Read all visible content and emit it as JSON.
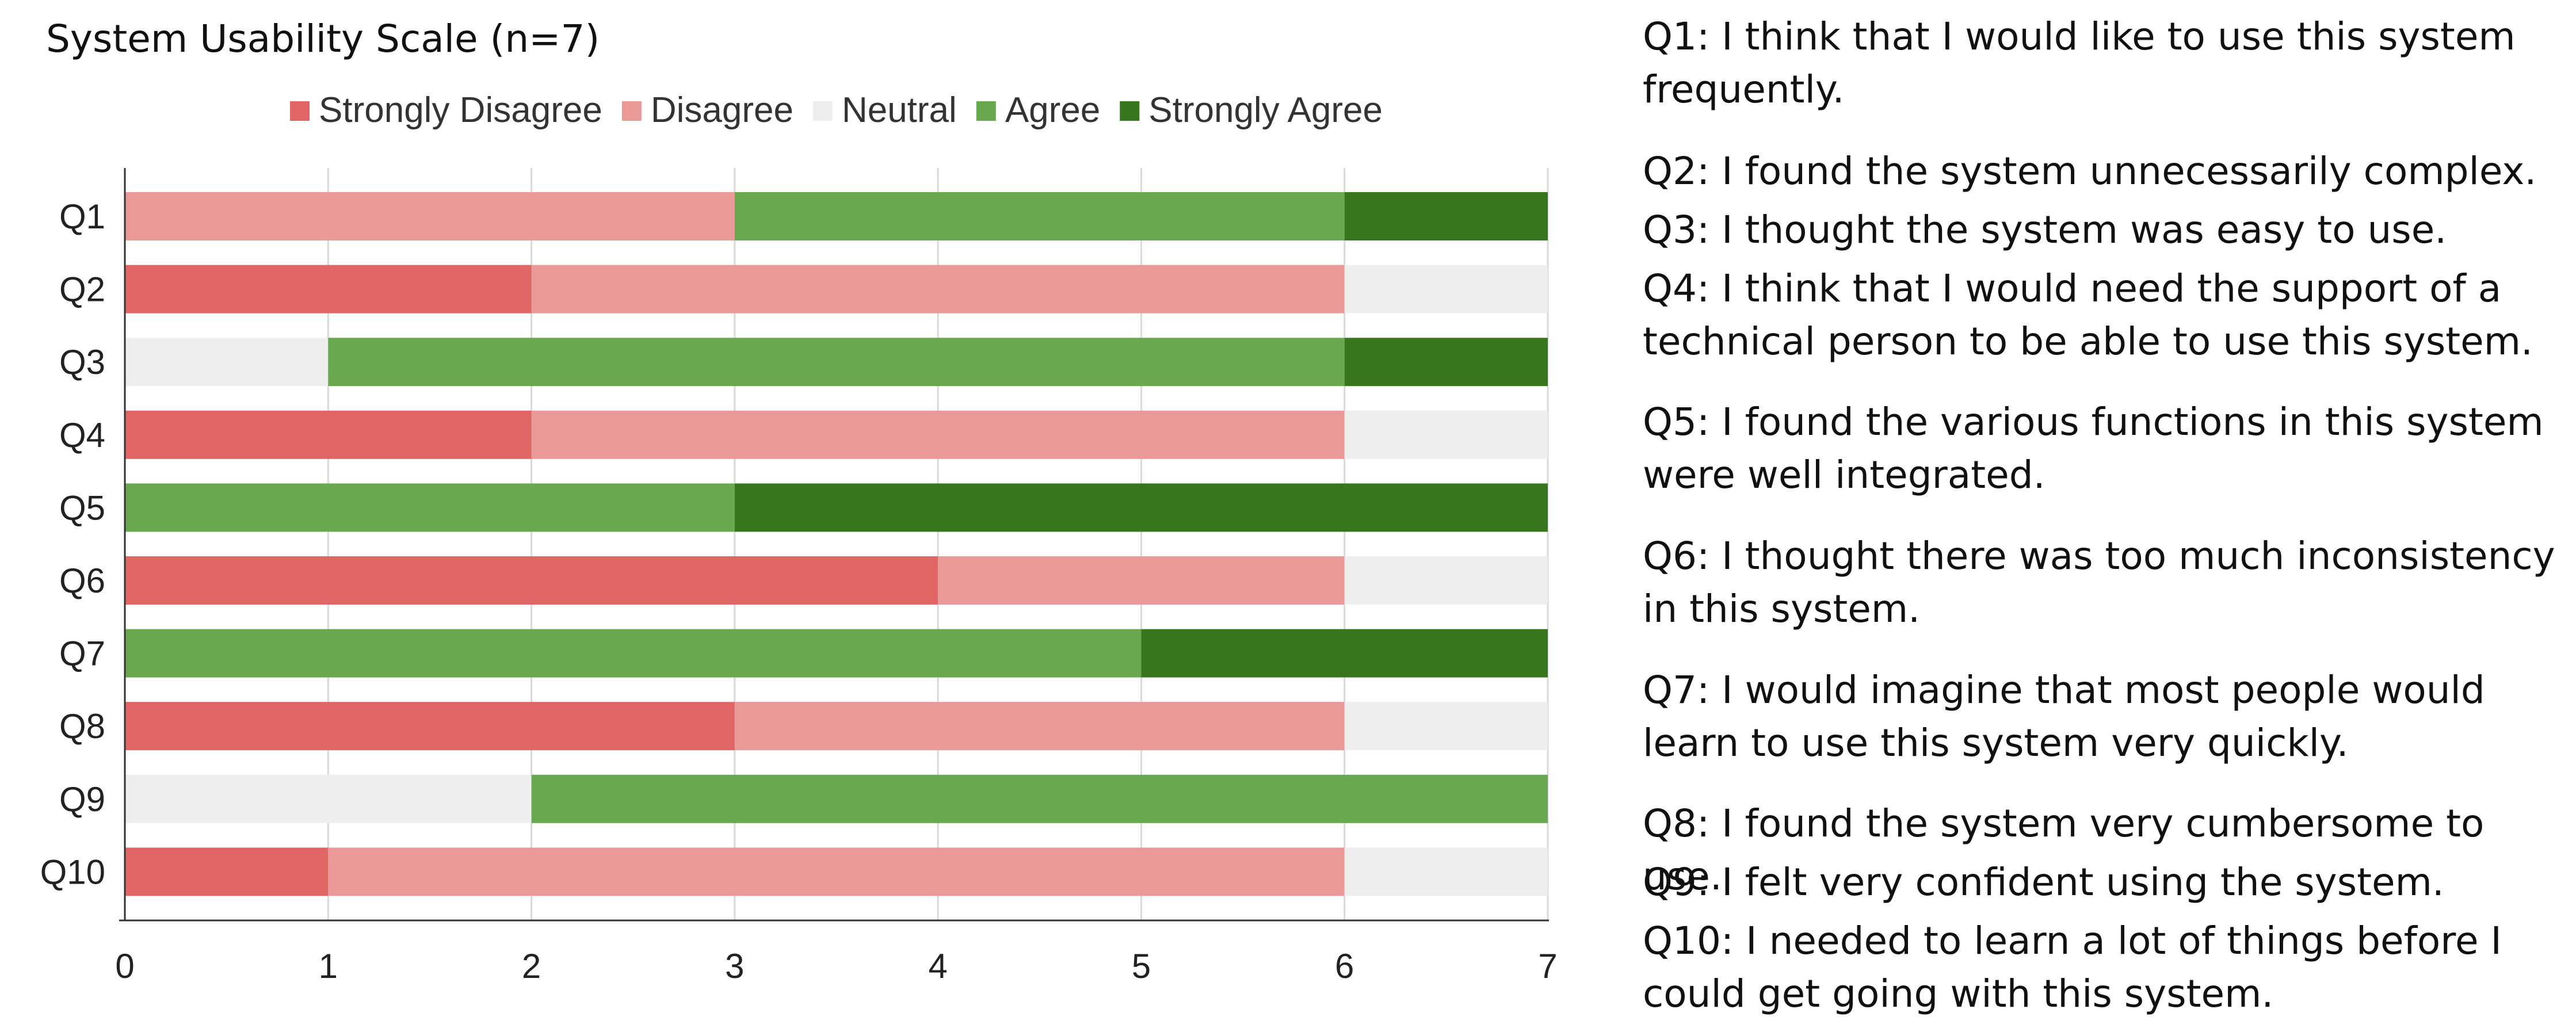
{
  "chart_data": {
    "type": "bar",
    "orientation": "horizontal",
    "stacked": true,
    "title": "System Usability Scale (n=7)",
    "categories": [
      "Q1",
      "Q2",
      "Q3",
      "Q4",
      "Q5",
      "Q6",
      "Q7",
      "Q8",
      "Q9",
      "Q10"
    ],
    "series": [
      {
        "name": "Strongly Disagree",
        "color": "#e06666",
        "values": [
          0,
          2,
          0,
          2,
          0,
          4,
          0,
          3,
          0,
          1
        ]
      },
      {
        "name": "Disagree",
        "color": "#ea9999",
        "values": [
          3,
          4,
          0,
          4,
          0,
          2,
          0,
          3,
          0,
          5
        ]
      },
      {
        "name": "Neutral",
        "color": "#eeeeee",
        "values": [
          0,
          1,
          1,
          1,
          0,
          1,
          0,
          1,
          2,
          1
        ]
      },
      {
        "name": "Agree",
        "color": "#6aa84f",
        "values": [
          3,
          0,
          5,
          0,
          3,
          0,
          5,
          0,
          5,
          0
        ]
      },
      {
        "name": "Strongly Agree",
        "color": "#38761d",
        "values": [
          1,
          0,
          1,
          0,
          4,
          0,
          2,
          0,
          0,
          0
        ]
      }
    ],
    "xlim": [
      0,
      7
    ],
    "xticks": [
      "0",
      "1",
      "2",
      "3",
      "4",
      "5",
      "6",
      "7"
    ],
    "xlabel": "",
    "ylabel": "",
    "grid": "vertical",
    "legend_position": "top"
  },
  "questions": [
    "Q1: I think that I would like to use this system frequently.",
    "Q2: I found the system unnecessarily complex.",
    "Q3: I thought the system was easy to use.",
    "Q4: I think that I would need the support of a technical person to be able to use this system.",
    "Q5: I found the various functions in this system were well integrated.",
    "Q6: I thought there was too much inconsistency in this system.",
    "Q7: I would imagine that most people would learn to use this system very quickly.",
    "Q8: I found the system very cumbersome to use.",
    "Q9: I felt very confident using the system.",
    "Q10: I needed to learn a lot of things before I could get going with this system."
  ]
}
